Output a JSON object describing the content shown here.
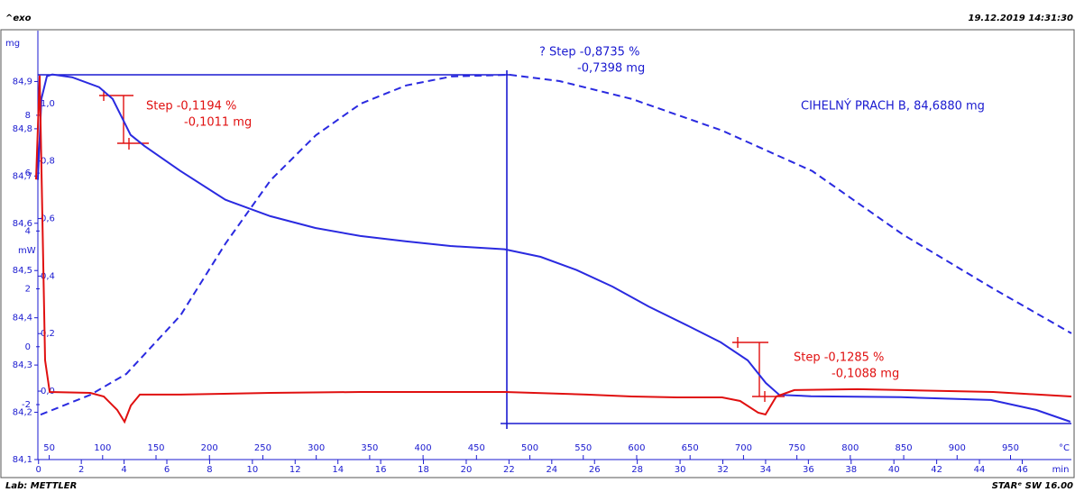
{
  "header": {
    "left": "^exo",
    "right": "19.12.2019 14:31:30"
  },
  "footer": {
    "left": "Lab: METTLER",
    "right": "STARᵉ SW 16.00"
  },
  "chart_data": {
    "type": "line",
    "xlim": [
      36,
      1007
    ],
    "xticks": [
      50,
      100,
      150,
      200,
      250,
      300,
      350,
      400,
      450,
      500,
      550,
      600,
      650,
      700,
      750,
      800,
      850,
      900,
      950
    ],
    "xlabel": "°C",
    "time_axis": {
      "label": "min",
      "lim": [
        -0.2,
        48.3
      ],
      "ticks": [
        0,
        2,
        4,
        6,
        8,
        10,
        12,
        14,
        16,
        18,
        20,
        22,
        24,
        26,
        28,
        30,
        32,
        34,
        36,
        38,
        40,
        42,
        44,
        46
      ]
    },
    "ylabel": "mg",
    "ylim": [
      84.1,
      85.0
    ],
    "yticks": [
      {
        "value": 84.1,
        "label": "84,1"
      },
      {
        "value": 84.2,
        "label": "84,2"
      },
      {
        "value": 84.3,
        "label": "84,3"
      },
      {
        "value": 84.4,
        "label": "84,4"
      },
      {
        "value": 84.5,
        "label": "84,5"
      },
      {
        "value": 84.6,
        "label": "84,6"
      },
      {
        "value": 84.7,
        "label": "84,7"
      },
      {
        "value": 84.8,
        "label": "84,8"
      },
      {
        "value": 84.9,
        "label": "84,9"
      }
    ],
    "y2label": "mW",
    "y2lim": [
      -3.9,
      10.8
    ],
    "y2ticks": [
      -2,
      0,
      2,
      4,
      6,
      8
    ],
    "y3lim": [
      -0.238,
      1.241
    ],
    "y3ticks": [
      {
        "value": 0,
        "label": "0,0"
      },
      {
        "value": 0.2,
        "label": "0,2"
      },
      {
        "value": 0.4,
        "label": "0,4"
      },
      {
        "value": 0.6,
        "label": "0,6"
      },
      {
        "value": 0.8,
        "label": "0,8"
      },
      {
        "value": 1.0,
        "label": "1,0"
      }
    ],
    "series": [
      {
        "color": "#2a2ae0",
        "axis": "y",
        "x": [
          39.4,
          42.7,
          47.8,
          52.9,
          71.4,
          96.7,
          109.4,
          117.8,
          126.2,
          138.9,
          172.6,
          214.8,
          257.0,
          299.2,
          341.3,
          383.5,
          425.7,
          476.3,
          510.0,
          543.8,
          577.5,
          611.2,
          649.0,
          678.7,
          704.0,
          720.9,
          733.5,
          763.1,
          847.4,
          931.7,
          974.0,
          1006
        ],
        "values": [
          84.692,
          84.863,
          84.911,
          84.915,
          84.909,
          84.888,
          84.863,
          84.825,
          84.787,
          84.764,
          84.711,
          84.65,
          84.615,
          84.59,
          84.573,
          84.562,
          84.552,
          84.545,
          84.529,
          84.501,
          84.466,
          84.424,
          84.382,
          84.348,
          84.31,
          84.262,
          84.237,
          84.234,
          84.232,
          84.226,
          84.205,
          84.18
        ]
      },
      {
        "color": "#e01010",
        "axis": "y2",
        "x": [
          37.7,
          41.1,
          46.1,
          50.4,
          88.4,
          101.1,
          113.7,
          120.5,
          126.4,
          134.9,
          172.9,
          257.4,
          341.9,
          426.4,
          476.7,
          553.2,
          595.4,
          637.7,
          680.0,
          696.9,
          713.8,
          720.6,
          730.7,
          747.6,
          806.8,
          849.0,
          933.5,
          1007
        ],
        "values": [
          5.78,
          9.375,
          -0.469,
          -1.563,
          -1.594,
          -1.719,
          -2.188,
          -2.594,
          -2.031,
          -1.656,
          -1.656,
          -1.594,
          -1.563,
          -1.563,
          -1.563,
          -1.656,
          -1.719,
          -1.75,
          -1.75,
          -1.875,
          -2.281,
          -2.344,
          -1.719,
          -1.5,
          -1.469,
          -1.5,
          -1.563,
          -1.719
        ]
      },
      {
        "color": "#2a2ae0",
        "axis": "y3",
        "dashed": true,
        "x": [
          41.9,
          88.4,
          122.2,
          172.9,
          215.2,
          257.4,
          299.7,
          341.9,
          384.2,
          426.4,
          481.4,
          527.8,
          595.4,
          680,
          764.5,
          849,
          933.5,
          1007
        ],
        "values": [
          -0.082,
          -0.013,
          0.06,
          0.263,
          0.514,
          0.734,
          0.89,
          1.0,
          1.063,
          1.094,
          1.1,
          1.078,
          1.016,
          0.906,
          0.765,
          0.545,
          0.357,
          0.201
        ]
      }
    ],
    "annotations": [
      {
        "lines": [
          "? Step   -0,8735 %",
          "-0,7398 mg"
        ],
        "color": "#1a1ad0"
      },
      {
        "lines": [
          "Step   -0,1194 %",
          "-0,1011 mg"
        ],
        "color": "#e01010"
      },
      {
        "lines": [
          "Step   -0,1285 %",
          "-0,1088 mg"
        ],
        "color": "#e01010"
      },
      {
        "lines": [
          "CIHELNÝ PRACH B, 84,6880 mg"
        ],
        "color": "#1a1ad0"
      }
    ]
  }
}
